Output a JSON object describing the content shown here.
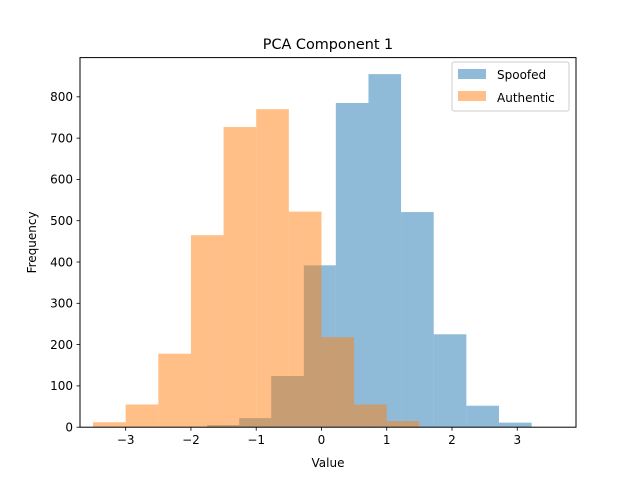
{
  "chart_data": {
    "type": "histogram",
    "title": "PCA Component 1",
    "xlabel": "Value",
    "ylabel": "Frequency",
    "xlim": [
      -3.7,
      3.9
    ],
    "ylim": [
      0,
      895
    ],
    "xticks": [
      -3,
      -2,
      -1,
      0,
      1,
      2,
      3
    ],
    "xtick_labels": [
      "−3",
      "−2",
      "−1",
      "0",
      "1",
      "2",
      "3"
    ],
    "yticks": [
      0,
      100,
      200,
      300,
      400,
      500,
      600,
      700,
      800
    ],
    "grid": false,
    "legend_position": "top-right",
    "series": [
      {
        "name": "Spoofed",
        "color": "#1f77b4",
        "alpha": 0.5,
        "bins": [
          {
            "x0": -1.75,
            "x1": -1.26,
            "value": 5
          },
          {
            "x0": -1.26,
            "x1": -0.77,
            "value": 22
          },
          {
            "x0": -0.77,
            "x1": -0.27,
            "value": 124
          },
          {
            "x0": -0.27,
            "x1": 0.22,
            "value": 392
          },
          {
            "x0": 0.22,
            "x1": 0.72,
            "value": 785
          },
          {
            "x0": 0.72,
            "x1": 1.22,
            "value": 855
          },
          {
            "x0": 1.22,
            "x1": 1.72,
            "value": 521
          },
          {
            "x0": 1.72,
            "x1": 2.22,
            "value": 225
          },
          {
            "x0": 2.22,
            "x1": 2.72,
            "value": 52
          },
          {
            "x0": 2.72,
            "x1": 3.22,
            "value": 11
          }
        ]
      },
      {
        "name": "Authentic",
        "color": "#ff7f0e",
        "alpha": 0.5,
        "bins": [
          {
            "x0": -3.5,
            "x1": -3.0,
            "value": 12
          },
          {
            "x0": -3.0,
            "x1": -2.5,
            "value": 55
          },
          {
            "x0": -2.5,
            "x1": -2.0,
            "value": 178
          },
          {
            "x0": -2.0,
            "x1": -1.5,
            "value": 465
          },
          {
            "x0": -1.5,
            "x1": -1.0,
            "value": 727
          },
          {
            "x0": -1.0,
            "x1": -0.5,
            "value": 770
          },
          {
            "x0": -0.5,
            "x1": 0.0,
            "value": 522
          },
          {
            "x0": 0.0,
            "x1": 0.5,
            "value": 218
          },
          {
            "x0": 0.5,
            "x1": 1.0,
            "value": 55
          },
          {
            "x0": 1.0,
            "x1": 1.5,
            "value": 15
          }
        ]
      }
    ]
  }
}
